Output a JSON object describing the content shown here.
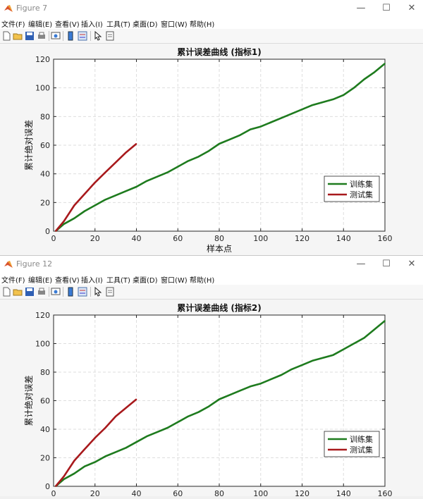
{
  "colors": {
    "train": "#1e7b1e",
    "test": "#a8191c",
    "grid": "#dedede"
  },
  "windows": [
    {
      "title": "Figure 7",
      "controls": [
        "—",
        "☐",
        "✕"
      ],
      "menu": [
        "文件(F)",
        "编辑(E)",
        "查看(V)",
        "插入(I)",
        "工具(T)",
        "桌面(D)",
        "窗口(W)",
        "帮助(H)"
      ]
    },
    {
      "title": "Figure 12",
      "controls": [
        "—",
        "☐",
        "✕"
      ],
      "menu": [
        "文件(F)",
        "编辑(E)",
        "查看(V)",
        "插入(I)",
        "工具(T)",
        "桌面(D)",
        "窗口(W)",
        "帮助(H)"
      ]
    }
  ],
  "chart_data": [
    {
      "type": "line",
      "title": "累计误差曲线 (指标1)",
      "xlabel": "样本点",
      "ylabel": "累计绝对误差",
      "xlim": [
        0,
        160
      ],
      "ylim": [
        0,
        120
      ],
      "xticks": [
        0,
        20,
        40,
        60,
        80,
        100,
        120,
        140,
        160
      ],
      "yticks": [
        0,
        20,
        40,
        60,
        80,
        100,
        120
      ],
      "grid": true,
      "legend_position": "lower-right",
      "series": [
        {
          "name": "训练集",
          "color": "#1e7b1e",
          "x": [
            1,
            5,
            10,
            15,
            20,
            25,
            30,
            35,
            40,
            45,
            50,
            55,
            60,
            65,
            70,
            75,
            80,
            85,
            90,
            95,
            100,
            105,
            110,
            115,
            120,
            125,
            130,
            135,
            140,
            145,
            150,
            155,
            160
          ],
          "y": [
            0,
            5,
            9,
            14,
            18,
            22,
            25,
            28,
            31,
            35,
            38,
            41,
            45,
            49,
            52,
            56,
            61,
            64,
            67,
            71,
            73,
            76,
            79,
            82,
            85,
            88,
            90,
            92,
            95,
            100,
            106,
            111,
            117
          ]
        },
        {
          "name": "测试集",
          "color": "#a8191c",
          "x": [
            1,
            5,
            10,
            15,
            20,
            25,
            30,
            35,
            40
          ],
          "y": [
            0,
            7,
            18,
            26,
            34,
            41,
            48,
            55,
            61
          ]
        }
      ]
    },
    {
      "type": "line",
      "title": "累计误差曲线 (指标2)",
      "xlabel": "",
      "ylabel": "累计绝对误差",
      "xlim": [
        0,
        160
      ],
      "ylim": [
        0,
        120
      ],
      "xticks": [
        0,
        20,
        40,
        60,
        80,
        100,
        120,
        140,
        160
      ],
      "yticks": [
        0,
        20,
        40,
        60,
        80,
        100,
        120
      ],
      "grid": true,
      "legend_position": "lower-right",
      "series": [
        {
          "name": "训练集",
          "color": "#1e7b1e",
          "x": [
            1,
            5,
            10,
            15,
            20,
            25,
            30,
            35,
            40,
            45,
            50,
            55,
            60,
            65,
            70,
            75,
            80,
            85,
            90,
            95,
            100,
            105,
            110,
            115,
            120,
            125,
            130,
            135,
            140,
            145,
            150,
            155,
            160
          ],
          "y": [
            0,
            5,
            9,
            14,
            17,
            21,
            24,
            27,
            31,
            35,
            38,
            41,
            45,
            49,
            52,
            56,
            61,
            64,
            67,
            70,
            72,
            75,
            78,
            82,
            85,
            88,
            90,
            92,
            96,
            100,
            104,
            110,
            116
          ]
        },
        {
          "name": "测试集",
          "color": "#a8191c",
          "x": [
            1,
            5,
            10,
            15,
            20,
            25,
            30,
            35,
            40
          ],
          "y": [
            0,
            7,
            18,
            26,
            34,
            41,
            49,
            55,
            61
          ]
        }
      ]
    }
  ]
}
